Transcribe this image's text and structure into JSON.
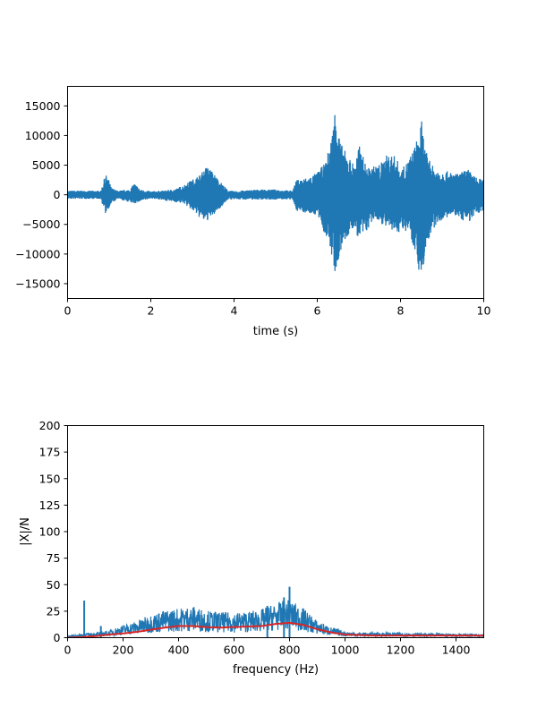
{
  "chart_data": [
    {
      "type": "line",
      "xlabel": "time (s)",
      "ylabel": "",
      "xlim": [
        0,
        10
      ],
      "ylim": [
        -17500,
        18300
      ],
      "xticks": [
        0,
        2,
        4,
        6,
        8,
        10
      ],
      "xtick_labels": [
        "0",
        "2",
        "4",
        "6",
        "8",
        "10"
      ],
      "yticks": [
        -15000,
        -10000,
        -5000,
        0,
        5000,
        10000,
        15000
      ],
      "ytick_labels": [
        "−15000",
        "−10000",
        "−5000",
        "0",
        "5000",
        "10000",
        "15000"
      ],
      "grid": false,
      "series": [
        {
          "color": "#1f77b4",
          "envelope": [
            [
              0.0,
              700
            ],
            [
              0.8,
              700
            ],
            [
              0.9,
              3200
            ],
            [
              0.95,
              3400
            ],
            [
              1.05,
              1200
            ],
            [
              1.2,
              700
            ],
            [
              1.5,
              900
            ],
            [
              1.6,
              2000
            ],
            [
              1.75,
              900
            ],
            [
              2.0,
              600
            ],
            [
              2.3,
              700
            ],
            [
              2.6,
              1000
            ],
            [
              2.8,
              1700
            ],
            [
              3.0,
              2600
            ],
            [
              3.2,
              3500
            ],
            [
              3.35,
              5000
            ],
            [
              3.5,
              3800
            ],
            [
              3.7,
              2000
            ],
            [
              3.85,
              800
            ],
            [
              4.0,
              600
            ],
            [
              4.5,
              900
            ],
            [
              5.0,
              900
            ],
            [
              5.4,
              700
            ],
            [
              5.5,
              2500
            ],
            [
              5.8,
              3000
            ],
            [
              6.0,
              3800
            ],
            [
              6.2,
              5500
            ],
            [
              6.35,
              10000
            ],
            [
              6.45,
              16500
            ],
            [
              6.55,
              9000
            ],
            [
              6.7,
              7000
            ],
            [
              6.9,
              5000
            ],
            [
              7.0,
              8500
            ],
            [
              7.2,
              4500
            ],
            [
              7.5,
              5200
            ],
            [
              7.7,
              7000
            ],
            [
              7.9,
              6500
            ],
            [
              8.0,
              4000
            ],
            [
              8.15,
              5500
            ],
            [
              8.3,
              7500
            ],
            [
              8.45,
              10500
            ],
            [
              8.5,
              12800
            ],
            [
              8.6,
              7500
            ],
            [
              8.8,
              4500
            ],
            [
              9.1,
              4000
            ],
            [
              9.4,
              3500
            ],
            [
              9.6,
              4500
            ],
            [
              9.8,
              3000
            ],
            [
              10.0,
              2500
            ]
          ],
          "min_envelope": [
            [
              0.0,
              700
            ],
            [
              0.8,
              700
            ],
            [
              0.9,
              3300
            ],
            [
              1.05,
              1500
            ],
            [
              1.2,
              700
            ],
            [
              1.6,
              1500
            ],
            [
              2.0,
              600
            ],
            [
              2.8,
              1500
            ],
            [
              3.3,
              4700
            ],
            [
              3.5,
              3500
            ],
            [
              3.85,
              800
            ],
            [
              5.4,
              800
            ],
            [
              5.5,
              2700
            ],
            [
              6.0,
              3500
            ],
            [
              6.3,
              9000
            ],
            [
              6.45,
              14200
            ],
            [
              6.6,
              8500
            ],
            [
              6.9,
              5500
            ],
            [
              7.0,
              8000
            ],
            [
              7.4,
              4000
            ],
            [
              7.8,
              6500
            ],
            [
              8.2,
              6000
            ],
            [
              8.4,
              11000
            ],
            [
              8.5,
              15800
            ],
            [
              8.6,
              9000
            ],
            [
              8.9,
              4500
            ],
            [
              9.3,
              3500
            ],
            [
              9.6,
              4800
            ],
            [
              10.0,
              2500
            ]
          ]
        }
      ]
    },
    {
      "type": "line",
      "xlabel": "frequency (Hz)",
      "ylabel": "|X|/N",
      "xlim": [
        0,
        1500
      ],
      "ylim": [
        0,
        200
      ],
      "xticks": [
        0,
        200,
        400,
        600,
        800,
        1000,
        1200,
        1400
      ],
      "xtick_labels": [
        "0",
        "200",
        "400",
        "600",
        "800",
        "1000",
        "1200",
        "1400"
      ],
      "yticks": [
        0,
        25,
        50,
        75,
        100,
        125,
        150,
        175,
        200
      ],
      "ytick_labels": [
        "0",
        "25",
        "50",
        "75",
        "100",
        "125",
        "150",
        "175",
        "200"
      ],
      "grid": false,
      "series": [
        {
          "color": "#1f77b4",
          "envelope": [
            [
              0,
              2
            ],
            [
              40,
              3
            ],
            [
              60,
              4
            ],
            [
              100,
              5
            ],
            [
              150,
              7
            ],
            [
              200,
              12
            ],
            [
              250,
              16
            ],
            [
              300,
              22
            ],
            [
              350,
              26
            ],
            [
              400,
              28
            ],
            [
              450,
              30
            ],
            [
              500,
              26
            ],
            [
              550,
              24
            ],
            [
              600,
              24
            ],
            [
              650,
              25
            ],
            [
              700,
              27
            ],
            [
              750,
              33
            ],
            [
              800,
              36
            ],
            [
              850,
              28
            ],
            [
              900,
              16
            ],
            [
              950,
              10
            ],
            [
              1000,
              6
            ],
            [
              1050,
              5
            ],
            [
              1100,
              5
            ],
            [
              1200,
              5
            ],
            [
              1300,
              4
            ],
            [
              1400,
              4
            ],
            [
              1500,
              4
            ]
          ],
          "spikes": [
            [
              60,
              35
            ],
            [
              120,
              11
            ],
            [
              800,
              48
            ],
            [
              720,
              30
            ],
            [
              780,
              38
            ]
          ]
        },
        {
          "color": "#d62728",
          "points": [
            [
              0,
              0
            ],
            [
              50,
              0.5
            ],
            [
              100,
              1.5
            ],
            [
              150,
              3
            ],
            [
              200,
              4
            ],
            [
              250,
              5.5
            ],
            [
              300,
              7.5
            ],
            [
              350,
              9.5
            ],
            [
              400,
              11
            ],
            [
              450,
              11
            ],
            [
              500,
              10
            ],
            [
              550,
              9.5
            ],
            [
              600,
              10
            ],
            [
              650,
              10.5
            ],
            [
              700,
              11
            ],
            [
              750,
              13
            ],
            [
              800,
              14
            ],
            [
              850,
              12
            ],
            [
              900,
              8
            ],
            [
              950,
              5
            ],
            [
              1000,
              3
            ],
            [
              1050,
              2.5
            ],
            [
              1100,
              2
            ],
            [
              1200,
              2
            ],
            [
              1300,
              2
            ],
            [
              1400,
              2
            ],
            [
              1500,
              2
            ]
          ]
        }
      ]
    }
  ]
}
